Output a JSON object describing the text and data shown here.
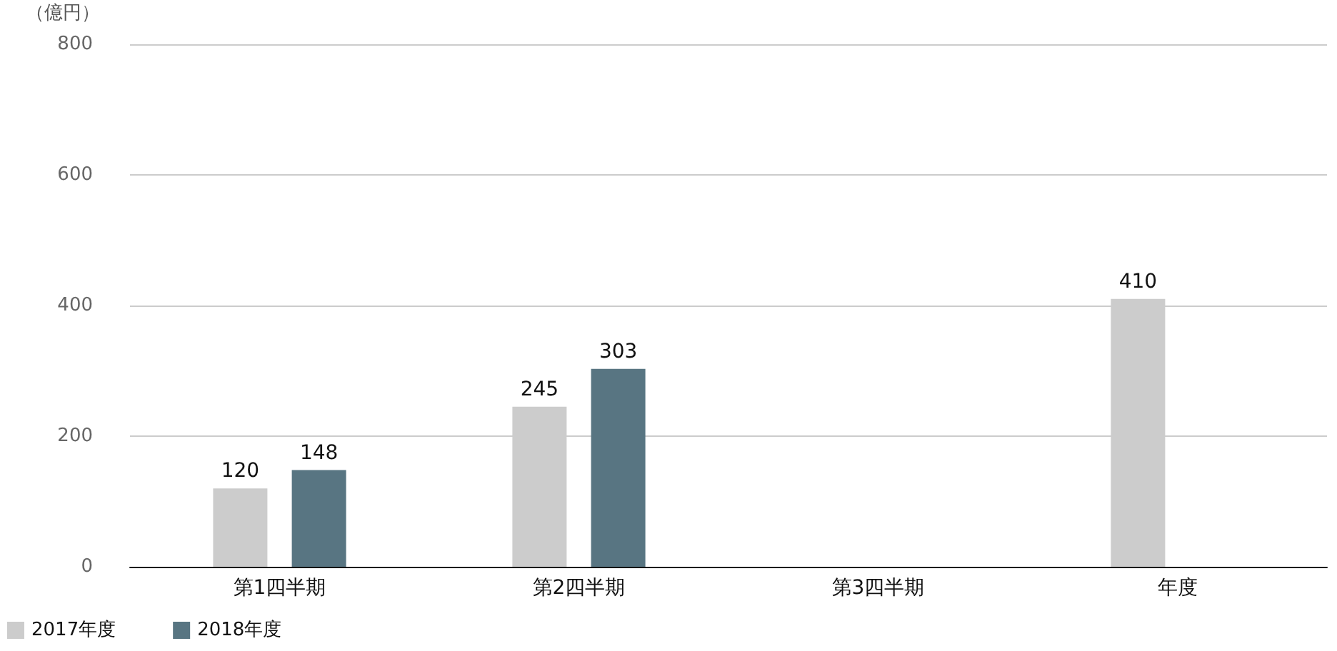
{
  "chart_data": {
    "type": "bar",
    "ylabel": "（億円）",
    "categories": [
      "第1四半期",
      "第2四半期",
      "第3四半期",
      "年度"
    ],
    "series": [
      {
        "name": "2017年度",
        "color": "#cccccc",
        "values": [
          120,
          245,
          null,
          410
        ]
      },
      {
        "name": "2018年度",
        "color": "#587582",
        "values": [
          148,
          303,
          null,
          null
        ]
      }
    ],
    "ylim": [
      0,
      800
    ],
    "yticks": [
      0,
      200,
      400,
      600,
      800
    ],
    "grid": "y",
    "legend": "bottom left",
    "data_labels": true
  }
}
